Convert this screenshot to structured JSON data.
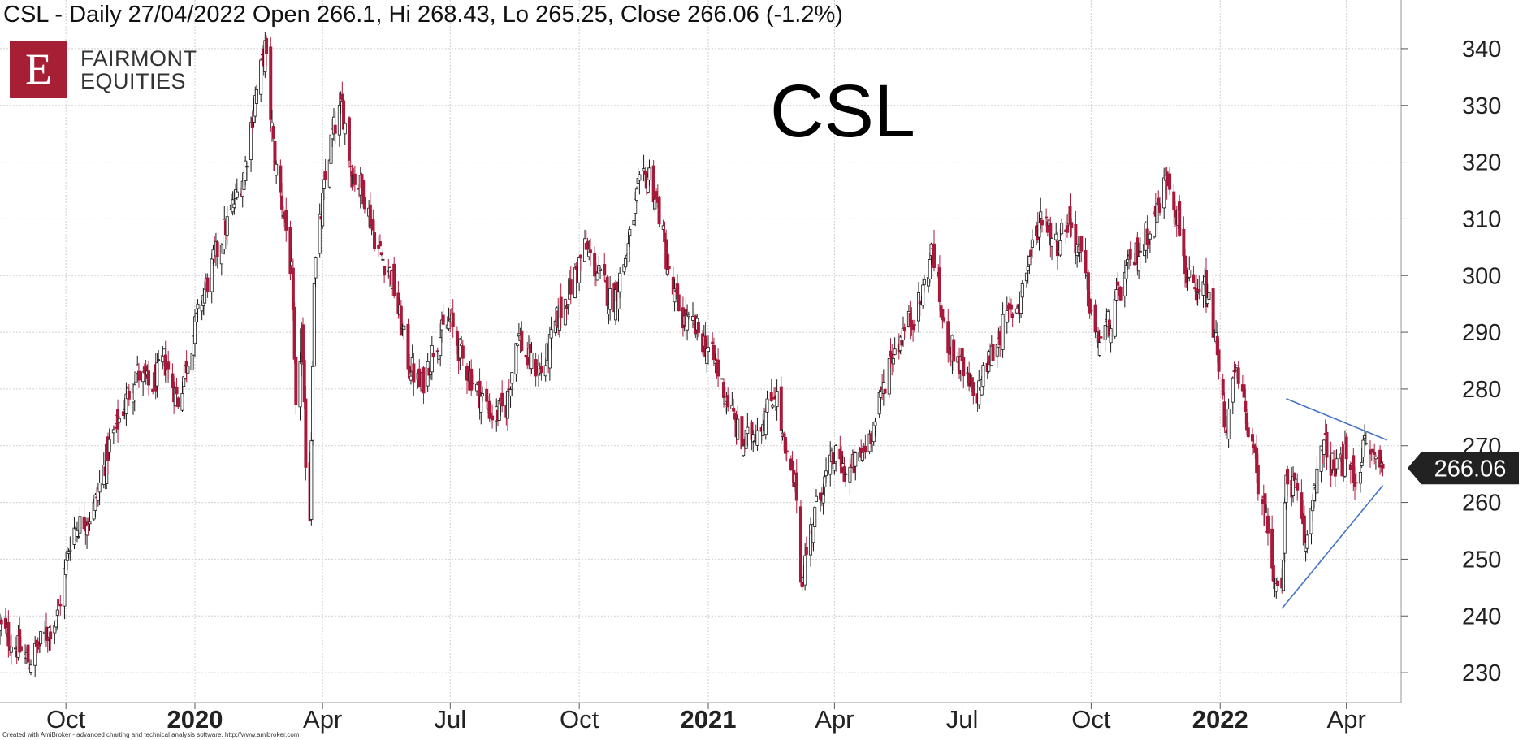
{
  "header": {
    "text": "CSL - Daily 27/04/2022 Open 266.1, Hi 268.43, Lo 265.25, Close 266.06 (-1.2%)"
  },
  "logo": {
    "letter": "E",
    "line1": "FAIRMONT",
    "line2": "EQUITIES",
    "color": "#a61f34"
  },
  "chart_data": {
    "type": "candlestick",
    "title": "CSL",
    "ylim": [
      225,
      345
    ],
    "y_ticks": [
      230,
      240,
      250,
      260,
      270,
      280,
      290,
      300,
      310,
      320,
      330,
      340
    ],
    "grid": true,
    "x_ticks": [
      {
        "label": "Oct",
        "date": "2019-10-01",
        "year": false
      },
      {
        "label": "2020",
        "date": "2020-01-01",
        "year": true
      },
      {
        "label": "Apr",
        "date": "2020-04-01",
        "year": false
      },
      {
        "label": "Jul",
        "date": "2020-07-01",
        "year": false
      },
      {
        "label": "Oct",
        "date": "2020-10-01",
        "year": false
      },
      {
        "label": "2021",
        "date": "2021-01-01",
        "year": true
      },
      {
        "label": "Apr",
        "date": "2021-04-01",
        "year": false
      },
      {
        "label": "Jul",
        "date": "2021-07-01",
        "year": false
      },
      {
        "label": "Oct",
        "date": "2021-10-01",
        "year": false
      },
      {
        "label": "2022",
        "date": "2022-01-01",
        "year": true
      },
      {
        "label": "Apr",
        "date": "2022-04-01",
        "year": false
      }
    ],
    "x_range": [
      "2019-08-15",
      "2022-05-10"
    ],
    "close_path": [
      [
        "2019-08-15",
        238
      ],
      [
        "2019-08-25",
        235
      ],
      [
        "2019-09-05",
        232
      ],
      [
        "2019-09-15",
        236
      ],
      [
        "2019-09-25",
        240
      ],
      [
        "2019-10-05",
        255
      ],
      [
        "2019-10-20",
        258
      ],
      [
        "2019-11-01",
        270
      ],
      [
        "2019-11-10",
        276
      ],
      [
        "2019-11-20",
        283
      ],
      [
        "2019-12-01",
        280
      ],
      [
        "2019-12-10",
        285
      ],
      [
        "2019-12-20",
        278
      ],
      [
        "2020-01-05",
        295
      ],
      [
        "2020-01-15",
        303
      ],
      [
        "2020-01-25",
        310
      ],
      [
        "2020-02-05",
        318
      ],
      [
        "2020-02-12",
        330
      ],
      [
        "2020-02-20",
        340
      ],
      [
        "2020-02-27",
        320
      ],
      [
        "2020-03-05",
        310
      ],
      [
        "2020-03-10",
        300
      ],
      [
        "2020-03-13",
        275
      ],
      [
        "2020-03-17",
        290
      ],
      [
        "2020-03-20",
        268
      ],
      [
        "2020-03-23",
        258
      ],
      [
        "2020-03-26",
        300
      ],
      [
        "2020-04-02",
        315
      ],
      [
        "2020-04-08",
        325
      ],
      [
        "2020-04-15",
        330
      ],
      [
        "2020-04-22",
        318
      ],
      [
        "2020-04-30",
        315
      ],
      [
        "2020-05-10",
        305
      ],
      [
        "2020-05-20",
        300
      ],
      [
        "2020-06-01",
        285
      ],
      [
        "2020-06-10",
        280
      ],
      [
        "2020-06-20",
        288
      ],
      [
        "2020-07-01",
        292
      ],
      [
        "2020-07-10",
        285
      ],
      [
        "2020-07-20",
        280
      ],
      [
        "2020-08-01",
        275
      ],
      [
        "2020-08-10",
        277
      ],
      [
        "2020-08-18",
        290
      ],
      [
        "2020-08-25",
        285
      ],
      [
        "2020-09-05",
        283
      ],
      [
        "2020-09-15",
        292
      ],
      [
        "2020-09-25",
        298
      ],
      [
        "2020-10-05",
        305
      ],
      [
        "2020-10-15",
        300
      ],
      [
        "2020-10-25",
        295
      ],
      [
        "2020-11-05",
        305
      ],
      [
        "2020-11-12",
        315
      ],
      [
        "2020-11-20",
        318
      ],
      [
        "2020-11-28",
        310
      ],
      [
        "2020-12-05",
        298
      ],
      [
        "2020-12-15",
        292
      ],
      [
        "2020-12-25",
        290
      ],
      [
        "2021-01-05",
        285
      ],
      [
        "2021-01-15",
        278
      ],
      [
        "2021-01-25",
        270
      ],
      [
        "2021-02-01",
        272
      ],
      [
        "2021-02-10",
        275
      ],
      [
        "2021-02-18",
        280
      ],
      [
        "2021-02-25",
        268
      ],
      [
        "2021-03-05",
        262
      ],
      [
        "2021-03-08",
        246
      ],
      [
        "2021-03-15",
        255
      ],
      [
        "2021-03-22",
        262
      ],
      [
        "2021-04-01",
        268
      ],
      [
        "2021-04-10",
        265
      ],
      [
        "2021-04-20",
        268
      ],
      [
        "2021-05-01",
        275
      ],
      [
        "2021-05-10",
        285
      ],
      [
        "2021-05-20",
        290
      ],
      [
        "2021-06-01",
        295
      ],
      [
        "2021-06-10",
        305
      ],
      [
        "2021-06-18",
        290
      ],
      [
        "2021-06-28",
        285
      ],
      [
        "2021-07-10",
        278
      ],
      [
        "2021-07-20",
        285
      ],
      [
        "2021-08-01",
        292
      ],
      [
        "2021-08-10",
        295
      ],
      [
        "2021-08-20",
        305
      ],
      [
        "2021-08-28",
        312
      ],
      [
        "2021-09-05",
        305
      ],
      [
        "2021-09-15",
        310
      ],
      [
        "2021-09-25",
        302
      ],
      [
        "2021-10-05",
        288
      ],
      [
        "2021-10-15",
        292
      ],
      [
        "2021-10-25",
        300
      ],
      [
        "2021-11-05",
        305
      ],
      [
        "2021-11-15",
        310
      ],
      [
        "2021-11-25",
        318
      ],
      [
        "2021-12-02",
        310
      ],
      [
        "2021-12-08",
        300
      ],
      [
        "2021-12-15",
        295
      ],
      [
        "2021-12-21",
        298
      ],
      [
        "2021-12-28",
        290
      ],
      [
        "2022-01-05",
        273
      ],
      [
        "2022-01-12",
        283
      ],
      [
        "2022-01-20",
        275
      ],
      [
        "2022-01-27",
        265
      ],
      [
        "2022-02-02",
        258
      ],
      [
        "2022-02-08",
        248
      ],
      [
        "2022-02-14",
        243
      ],
      [
        "2022-02-17",
        265
      ],
      [
        "2022-02-24",
        262
      ],
      [
        "2022-03-03",
        252
      ],
      [
        "2022-03-10",
        265
      ],
      [
        "2022-03-17",
        270
      ],
      [
        "2022-03-24",
        265
      ],
      [
        "2022-03-31",
        268
      ],
      [
        "2022-04-07",
        264
      ],
      [
        "2022-04-14",
        270
      ],
      [
        "2022-04-21",
        268
      ],
      [
        "2022-04-27",
        266.06
      ]
    ],
    "trendlines": [
      {
        "from": [
          "2022-02-17",
          278.3
        ],
        "to": [
          "2022-04-30",
          271.0
        ],
        "color": "#4472c4"
      },
      {
        "from": [
          "2022-02-14",
          241.3
        ],
        "to": [
          "2022-04-27",
          263.0
        ],
        "color": "#4472c4"
      }
    ],
    "last_close": {
      "value": "266.06",
      "y": 266.06
    },
    "colors": {
      "up": "#1a1a1a",
      "down": "#a8193a",
      "grid": "#d0d0d0"
    }
  },
  "footer": {
    "text": "Created with AmiBroker - advanced charting and technical analysis software. http://www.amibroker.com"
  }
}
